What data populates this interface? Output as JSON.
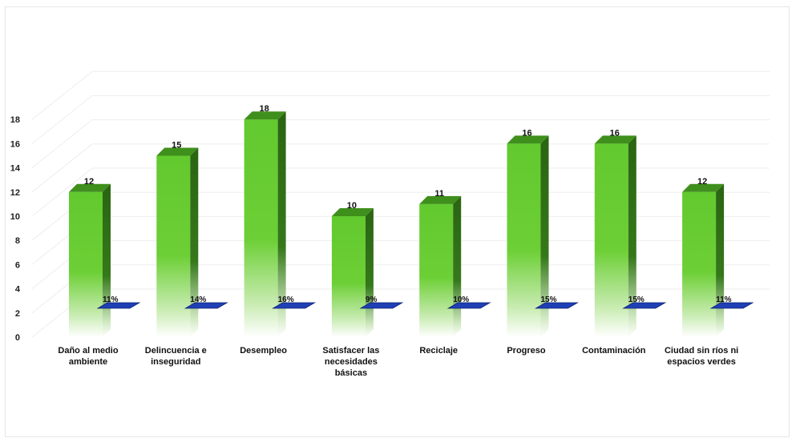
{
  "chart_data": {
    "type": "bar",
    "categories": [
      "Daño al medio ambiente",
      "Delincuencia e inseguridad",
      "Desempleo",
      "Satisfacer las necesidades básicas",
      "Reciclaje",
      "Progreso",
      "Contaminación",
      "Ciudad sin ríos ni espacios verdes"
    ],
    "category_lines": [
      [
        "Daño al medio",
        "ambiente"
      ],
      [
        "Delincuencia e",
        "inseguridad"
      ],
      [
        "Desempleo"
      ],
      [
        "Satisfacer las",
        "necesidades",
        "básicas"
      ],
      [
        "Reciclaje"
      ],
      [
        "Progreso"
      ],
      [
        "Contaminación"
      ],
      [
        "Ciudad sin ríos ni",
        "espacios verdes"
      ]
    ],
    "series": [
      {
        "values": [
          12,
          15,
          18,
          10,
          11,
          16,
          16,
          12
        ]
      },
      {
        "values": [
          0.11,
          0.14,
          0.16,
          0.09,
          0.1,
          0.15,
          0.15,
          0.11
        ]
      }
    ],
    "value_labels": [
      "12",
      "15",
      "18",
      "10",
      "11",
      "16",
      "16",
      "12"
    ],
    "percent_labels": [
      "11%",
      "14%",
      "16%",
      "9%",
      "10%",
      "15%",
      "15%",
      "11%"
    ],
    "yticks": [
      "0",
      "2",
      "4",
      "6",
      "8",
      "10",
      "12",
      "14",
      "16",
      "18"
    ],
    "ylim": [
      0,
      18
    ],
    "title": "",
    "xlabel": "",
    "ylabel": "",
    "grid": true,
    "legend": "none",
    "colors": {
      "bar_front": "#5cc62a",
      "bar_side": "#2f6d14",
      "bar_top": "#3f8f1c",
      "pct_bar": "#1f3fb5",
      "grid": "#eeeeee"
    }
  }
}
